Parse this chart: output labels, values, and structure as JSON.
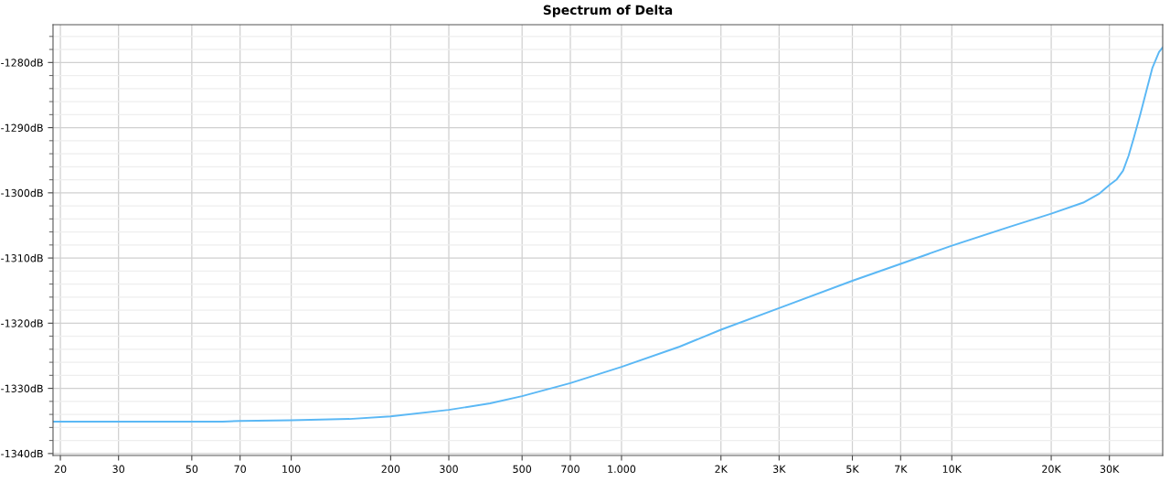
{
  "chart_data": {
    "type": "line",
    "title": "Spectrum of Delta",
    "log": "x",
    "grid": true,
    "marker": "none",
    "line_style": "solid",
    "xlim": [
      19,
      43500
    ],
    "ylim": [
      -1340.3,
      -1274.2
    ],
    "xticks": [
      20,
      30,
      50,
      70,
      100,
      200,
      300,
      500,
      700,
      {
        "value": 1000,
        "label": "1.000"
      },
      {
        "value": 2000,
        "label": "2K"
      },
      {
        "value": 3000,
        "label": "3K"
      },
      {
        "value": 5000,
        "label": "5K"
      },
      {
        "value": 7000,
        "label": "7K"
      },
      {
        "value": 10000,
        "label": "10K"
      },
      {
        "value": 20000,
        "label": "20K"
      },
      {
        "value": 30000,
        "label": "30K"
      }
    ],
    "yticks": [
      {
        "value": -1340,
        "label": "-1340dB"
      },
      {
        "value": -1330,
        "label": "-1330dB"
      },
      {
        "value": -1320,
        "label": "-1320dB"
      },
      {
        "value": -1310,
        "label": "-1310dB"
      },
      {
        "value": -1300,
        "label": "-1300dB"
      },
      {
        "value": -1290,
        "label": "-1290dB"
      },
      {
        "value": -1280,
        "label": "-1280dB"
      }
    ],
    "series": [
      {
        "color": "#5bb8f5",
        "x": [
          19,
          30,
          50,
          62,
          70,
          100,
          150,
          200,
          300,
          400,
          500,
          700,
          1000,
          1500,
          2000,
          3000,
          5000,
          7000,
          10000,
          15000,
          20000,
          25000,
          28000,
          30000,
          31500,
          33000,
          34300,
          35600,
          37200,
          38800,
          40500,
          42400,
          43500
        ],
        "values": [
          -1335.1,
          -1335.1,
          -1335.1,
          -1335.1,
          -1335.0,
          -1334.9,
          -1334.7,
          -1334.3,
          -1333.3,
          -1332.3,
          -1331.2,
          -1329.2,
          -1326.7,
          -1323.6,
          -1321.0,
          -1317.7,
          -1313.5,
          -1310.9,
          -1308.1,
          -1305.2,
          -1303.2,
          -1301.5,
          -1300.1,
          -1298.8,
          -1298.0,
          -1296.6,
          -1294.3,
          -1291.5,
          -1288.0,
          -1284.4,
          -1280.8,
          -1278.4,
          -1277.7
        ]
      }
    ]
  }
}
